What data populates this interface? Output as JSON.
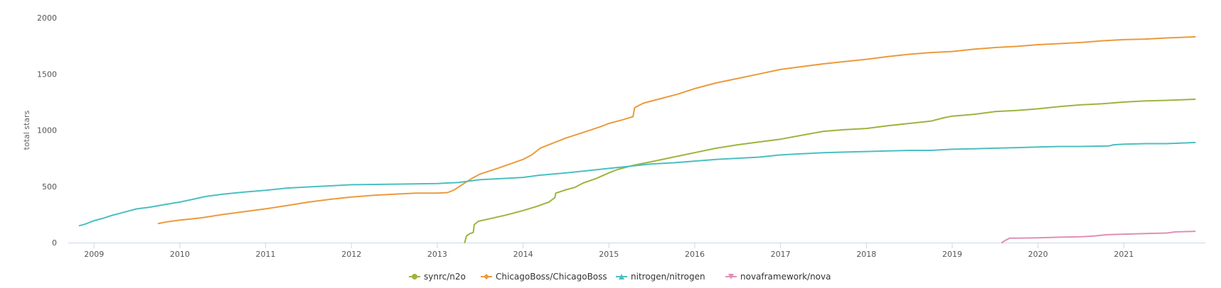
{
  "chart_data": {
    "type": "line",
    "ylabel": "total stars",
    "xlabel": "",
    "ylim": [
      0,
      2000
    ],
    "xlim": [
      2008.7,
      2021.95
    ],
    "yticks": [
      0,
      500,
      1000,
      1500,
      2000
    ],
    "xticks": [
      2009,
      2010,
      2011,
      2012,
      2013,
      2014,
      2015,
      2016,
      2017,
      2018,
      2019,
      2020,
      2021
    ],
    "grid": "horizontal-none",
    "legend_position": "bottom-center",
    "series": [
      {
        "name": "synrc/n2o",
        "color": "#9bb53e",
        "marker": "circle",
        "points": [
          [
            2013.32,
            0
          ],
          [
            2013.34,
            60
          ],
          [
            2013.38,
            80
          ],
          [
            2013.42,
            90
          ],
          [
            2013.43,
            160
          ],
          [
            2013.48,
            190
          ],
          [
            2013.6,
            210
          ],
          [
            2013.8,
            245
          ],
          [
            2014.0,
            285
          ],
          [
            2014.15,
            320
          ],
          [
            2014.3,
            360
          ],
          [
            2014.37,
            400
          ],
          [
            2014.38,
            440
          ],
          [
            2014.5,
            470
          ],
          [
            2014.6,
            490
          ],
          [
            2014.7,
            530
          ],
          [
            2014.85,
            570
          ],
          [
            2015.0,
            620
          ],
          [
            2015.1,
            650
          ],
          [
            2015.3,
            690
          ],
          [
            2015.5,
            720
          ],
          [
            2015.75,
            760
          ],
          [
            2016.0,
            800
          ],
          [
            2016.25,
            840
          ],
          [
            2016.5,
            870
          ],
          [
            2016.75,
            895
          ],
          [
            2017.0,
            920
          ],
          [
            2017.25,
            955
          ],
          [
            2017.5,
            990
          ],
          [
            2017.75,
            1005
          ],
          [
            2018.0,
            1015
          ],
          [
            2018.25,
            1040
          ],
          [
            2018.5,
            1060
          ],
          [
            2018.75,
            1080
          ],
          [
            2018.9,
            1110
          ],
          [
            2019.0,
            1125
          ],
          [
            2019.25,
            1140
          ],
          [
            2019.5,
            1165
          ],
          [
            2019.75,
            1175
          ],
          [
            2020.0,
            1190
          ],
          [
            2020.25,
            1210
          ],
          [
            2020.5,
            1225
          ],
          [
            2020.75,
            1235
          ],
          [
            2021.0,
            1250
          ],
          [
            2021.25,
            1260
          ],
          [
            2021.5,
            1265
          ],
          [
            2021.83,
            1275
          ]
        ]
      },
      {
        "name": "ChicagoBoss/ChicagoBoss",
        "color": "#ec9a3c",
        "marker": "diamond",
        "points": [
          [
            2009.75,
            170
          ],
          [
            2009.85,
            185
          ],
          [
            2010.0,
            200
          ],
          [
            2010.25,
            220
          ],
          [
            2010.5,
            250
          ],
          [
            2010.75,
            275
          ],
          [
            2011.0,
            300
          ],
          [
            2011.25,
            330
          ],
          [
            2011.5,
            360
          ],
          [
            2011.75,
            385
          ],
          [
            2012.0,
            405
          ],
          [
            2012.25,
            420
          ],
          [
            2012.5,
            430
          ],
          [
            2012.75,
            440
          ],
          [
            2013.0,
            440
          ],
          [
            2013.12,
            445
          ],
          [
            2013.2,
            470
          ],
          [
            2013.3,
            520
          ],
          [
            2013.4,
            570
          ],
          [
            2013.5,
            610
          ],
          [
            2013.7,
            660
          ],
          [
            2013.85,
            700
          ],
          [
            2014.0,
            740
          ],
          [
            2014.1,
            780
          ],
          [
            2014.2,
            840
          ],
          [
            2014.3,
            870
          ],
          [
            2014.5,
            930
          ],
          [
            2014.7,
            980
          ],
          [
            2014.9,
            1030
          ],
          [
            2015.0,
            1060
          ],
          [
            2015.15,
            1090
          ],
          [
            2015.28,
            1120
          ],
          [
            2015.3,
            1200
          ],
          [
            2015.4,
            1240
          ],
          [
            2015.6,
            1280
          ],
          [
            2015.8,
            1320
          ],
          [
            2016.0,
            1370
          ],
          [
            2016.25,
            1420
          ],
          [
            2016.5,
            1460
          ],
          [
            2016.75,
            1500
          ],
          [
            2017.0,
            1540
          ],
          [
            2017.25,
            1565
          ],
          [
            2017.5,
            1590
          ],
          [
            2017.75,
            1610
          ],
          [
            2018.0,
            1630
          ],
          [
            2018.25,
            1655
          ],
          [
            2018.5,
            1675
          ],
          [
            2018.75,
            1690
          ],
          [
            2019.0,
            1700
          ],
          [
            2019.25,
            1720
          ],
          [
            2019.5,
            1735
          ],
          [
            2019.75,
            1745
          ],
          [
            2020.0,
            1760
          ],
          [
            2020.25,
            1770
          ],
          [
            2020.5,
            1780
          ],
          [
            2020.75,
            1795
          ],
          [
            2021.0,
            1805
          ],
          [
            2021.25,
            1810
          ],
          [
            2021.5,
            1820
          ],
          [
            2021.83,
            1830
          ]
        ]
      },
      {
        "name": "nitrogen/nitrogen",
        "color": "#4bbfc1",
        "marker": "triangle",
        "points": [
          [
            2008.83,
            150
          ],
          [
            2008.9,
            165
          ],
          [
            2009.0,
            195
          ],
          [
            2009.1,
            215
          ],
          [
            2009.2,
            240
          ],
          [
            2009.35,
            270
          ],
          [
            2009.5,
            300
          ],
          [
            2009.65,
            315
          ],
          [
            2009.8,
            335
          ],
          [
            2010.0,
            360
          ],
          [
            2010.15,
            385
          ],
          [
            2010.3,
            410
          ],
          [
            2010.5,
            430
          ],
          [
            2010.75,
            450
          ],
          [
            2011.0,
            465
          ],
          [
            2011.25,
            485
          ],
          [
            2011.5,
            495
          ],
          [
            2011.75,
            505
          ],
          [
            2012.0,
            515
          ],
          [
            2012.5,
            520
          ],
          [
            2013.0,
            525
          ],
          [
            2013.25,
            535
          ],
          [
            2013.5,
            560
          ],
          [
            2013.75,
            570
          ],
          [
            2014.0,
            580
          ],
          [
            2014.2,
            600
          ],
          [
            2014.5,
            620
          ],
          [
            2014.75,
            640
          ],
          [
            2015.0,
            660
          ],
          [
            2015.25,
            680
          ],
          [
            2015.5,
            700
          ],
          [
            2015.75,
            710
          ],
          [
            2016.0,
            725
          ],
          [
            2016.25,
            740
          ],
          [
            2016.5,
            750
          ],
          [
            2016.75,
            760
          ],
          [
            2017.0,
            780
          ],
          [
            2017.25,
            790
          ],
          [
            2017.5,
            800
          ],
          [
            2017.75,
            805
          ],
          [
            2018.0,
            810
          ],
          [
            2018.25,
            815
          ],
          [
            2018.5,
            820
          ],
          [
            2018.75,
            820
          ],
          [
            2019.0,
            830
          ],
          [
            2019.25,
            835
          ],
          [
            2019.5,
            840
          ],
          [
            2019.75,
            845
          ],
          [
            2020.0,
            850
          ],
          [
            2020.25,
            855
          ],
          [
            2020.5,
            855
          ],
          [
            2020.83,
            860
          ],
          [
            2020.88,
            870
          ],
          [
            2021.0,
            875
          ],
          [
            2021.25,
            880
          ],
          [
            2021.5,
            880
          ],
          [
            2021.83,
            890
          ]
        ]
      },
      {
        "name": "novaframework/nova",
        "color": "#e08fb4",
        "marker": "inverted-triangle",
        "points": [
          [
            2019.58,
            0
          ],
          [
            2019.62,
            20
          ],
          [
            2019.67,
            40
          ],
          [
            2019.75,
            40
          ],
          [
            2020.0,
            42
          ],
          [
            2020.25,
            48
          ],
          [
            2020.5,
            52
          ],
          [
            2020.65,
            58
          ],
          [
            2020.8,
            70
          ],
          [
            2021.0,
            75
          ],
          [
            2021.25,
            80
          ],
          [
            2021.5,
            85
          ],
          [
            2021.6,
            95
          ],
          [
            2021.83,
            100
          ]
        ]
      }
    ]
  }
}
